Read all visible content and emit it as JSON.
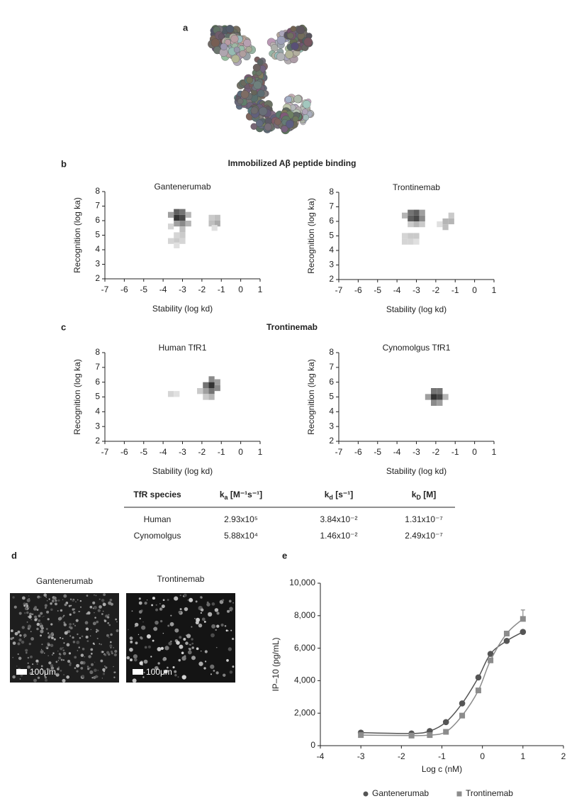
{
  "panel_labels": [
    "a",
    "b",
    "c",
    "d",
    "e"
  ],
  "section_titles": [
    "Immobilized Aβ peptide binding",
    "Trontinemab"
  ],
  "chart_data": [
    {
      "type": "heatmap",
      "title": "Gantenerumab",
      "x_label": "Stability (log kd)",
      "y_label": "Recognition (log ka)",
      "xlim": [
        -7,
        1
      ],
      "xticks": [
        -7,
        -6,
        -5,
        -4,
        -3,
        -2,
        -1,
        0,
        1
      ],
      "ylim": [
        2,
        8
      ],
      "yticks": [
        2,
        3,
        4,
        5,
        6,
        7,
        8
      ],
      "x": [
        -3.3,
        -3.0,
        -3.3,
        -3.0,
        -3.6,
        -2.7,
        -3.3,
        -3.0,
        -2.7,
        -3.0,
        -3.0,
        -3.3,
        -3.6,
        -3.6,
        -3.3,
        -3.0,
        -3.3,
        -1.5,
        -1.2,
        -1.5,
        -1.2,
        -1.35
      ],
      "y": [
        6.6,
        6.6,
        6.2,
        6.2,
        6.4,
        6.4,
        5.8,
        5.8,
        5.8,
        5.4,
        5.0,
        5.0,
        5.6,
        4.6,
        4.6,
        4.6,
        4.3,
        6.2,
        6.2,
        5.8,
        5.8,
        5.5
      ],
      "values": [
        0.7,
        0.6,
        0.9,
        0.8,
        0.4,
        0.3,
        0.4,
        0.5,
        0.3,
        0.25,
        0.2,
        0.15,
        0.15,
        0.15,
        0.2,
        0.15,
        0.1,
        0.2,
        0.25,
        0.25,
        0.35,
        0.1
      ]
    },
    {
      "type": "heatmap",
      "title": "Trontinemab",
      "x_label": "Stability (log kd)",
      "y_label": "Recognition (log ka)",
      "xlim": [
        -7,
        1
      ],
      "xticks": [
        -7,
        -6,
        -5,
        -4,
        -3,
        -2,
        -1,
        0,
        1
      ],
      "ylim": [
        2,
        8
      ],
      "yticks": [
        2,
        3,
        4,
        5,
        6,
        7,
        8
      ],
      "x": [
        -3.3,
        -3.0,
        -2.7,
        -3.3,
        -3.0,
        -2.7,
        -3.6,
        -3.0,
        -3.3,
        -2.7,
        -3.6,
        -3.3,
        -3.0,
        -3.6,
        -3.3,
        -3.0,
        -1.2,
        -1.5,
        -1.2,
        -1.5,
        -1.8
      ],
      "y": [
        6.6,
        6.6,
        6.6,
        6.2,
        6.2,
        6.2,
        6.4,
        5.8,
        5.8,
        5.8,
        5.0,
        5.0,
        5.0,
        4.6,
        4.6,
        4.6,
        6.4,
        6.0,
        6.0,
        5.6,
        5.8
      ],
      "values": [
        0.6,
        0.7,
        0.4,
        0.7,
        0.8,
        0.5,
        0.3,
        0.3,
        0.2,
        0.2,
        0.15,
        0.2,
        0.2,
        0.15,
        0.15,
        0.1,
        0.2,
        0.3,
        0.3,
        0.25,
        0.1
      ]
    },
    {
      "type": "heatmap",
      "title": "Human TfR1",
      "x_label": "Stability (log kd)",
      "y_label": "Recognition (log ka)",
      "xlim": [
        -7,
        1
      ],
      "xticks": [
        -7,
        -6,
        -5,
        -4,
        -3,
        -2,
        -1,
        0,
        1
      ],
      "ylim": [
        2,
        8
      ],
      "yticks": [
        2,
        3,
        4,
        5,
        6,
        7,
        8
      ],
      "x": [
        -1.5,
        -1.2,
        -1.5,
        -1.8,
        -1.2,
        -1.5,
        -1.8,
        -2.1,
        -1.5,
        -1.8,
        -3.6,
        -3.3
      ],
      "y": [
        6.2,
        6.0,
        5.8,
        5.8,
        5.6,
        5.4,
        5.4,
        5.4,
        5.0,
        5.0,
        5.2,
        5.2
      ],
      "values": [
        0.5,
        0.4,
        0.9,
        0.6,
        0.5,
        0.6,
        0.4,
        0.2,
        0.3,
        0.2,
        0.15,
        0.1
      ]
    },
    {
      "type": "heatmap",
      "title": "Cynomolgus TfR1",
      "x_label": "Stability (log kd)",
      "y_label": "Recognition (log ka)",
      "xlim": [
        -7,
        1
      ],
      "xticks": [
        -7,
        -6,
        -5,
        -4,
        -3,
        -2,
        -1,
        0,
        1
      ],
      "ylim": [
        2,
        8
      ],
      "yticks": [
        2,
        3,
        4,
        5,
        6,
        7,
        8
      ],
      "x": [
        -2.1,
        -1.8,
        -2.1,
        -1.8,
        -2.4,
        -1.5,
        -2.1,
        -1.8
      ],
      "y": [
        5.4,
        5.4,
        5.0,
        5.0,
        5.0,
        5.0,
        4.6,
        4.6
      ],
      "values": [
        0.6,
        0.6,
        0.9,
        0.8,
        0.4,
        0.3,
        0.5,
        0.4
      ]
    },
    {
      "type": "line",
      "x_label": "Log c (nM)",
      "y_label": "IP–10 (pg/mL)",
      "xlim": [
        -4,
        2
      ],
      "xticks": [
        -4,
        -3,
        -2,
        -1,
        0,
        1,
        2
      ],
      "ylim": [
        0,
        10000
      ],
      "yticks": [
        0,
        {
          "value": 2000,
          "label": "2,000"
        },
        {
          "value": 4000,
          "label": "4,000"
        },
        {
          "value": 6000,
          "label": "6,000"
        },
        {
          "value": 8000,
          "label": "8,000"
        },
        {
          "value": 10000,
          "label": "10,000"
        }
      ],
      "x": [
        -3,
        -1.75,
        -1.3,
        -0.9,
        -0.5,
        -0.1,
        0.2,
        0.6,
        1.0
      ],
      "legend": "bottom",
      "series": [
        {
          "name": "Gantenerumab",
          "color": "#555555",
          "marker": "circle",
          "values": [
            800,
            750,
            900,
            1450,
            2600,
            4200,
            5650,
            6450,
            7000
          ]
        },
        {
          "name": "Trontinemab",
          "color": "#8c8c8c",
          "marker": "square",
          "values": [
            650,
            620,
            650,
            850,
            1850,
            3400,
            5250,
            6900,
            7800
          ],
          "errors": [
            null,
            null,
            null,
            null,
            null,
            null,
            null,
            null,
            550
          ]
        }
      ]
    }
  ],
  "table": {
    "columns": [
      "TfR species",
      {
        "base": "k",
        "sub": "a",
        "unit": " [M⁻¹s⁻¹]"
      },
      {
        "base": "k",
        "sub": "d",
        "unit": " [s⁻¹]"
      },
      {
        "base": "k",
        "sub": "D",
        "unit": " [M]"
      }
    ],
    "rows": [
      [
        "Human",
        "2.93x10⁵",
        "3.84x10⁻²",
        "1.31x10⁻⁷"
      ],
      [
        "Cynomolgus",
        "5.88x10⁴",
        "1.46x10⁻²",
        "2.49x10⁻⁷"
      ]
    ]
  },
  "micrographs": [
    {
      "label": "Gantenerumab",
      "scale_bar": "100μm"
    },
    {
      "label": "Trontinemab",
      "scale_bar": "100μm"
    }
  ]
}
